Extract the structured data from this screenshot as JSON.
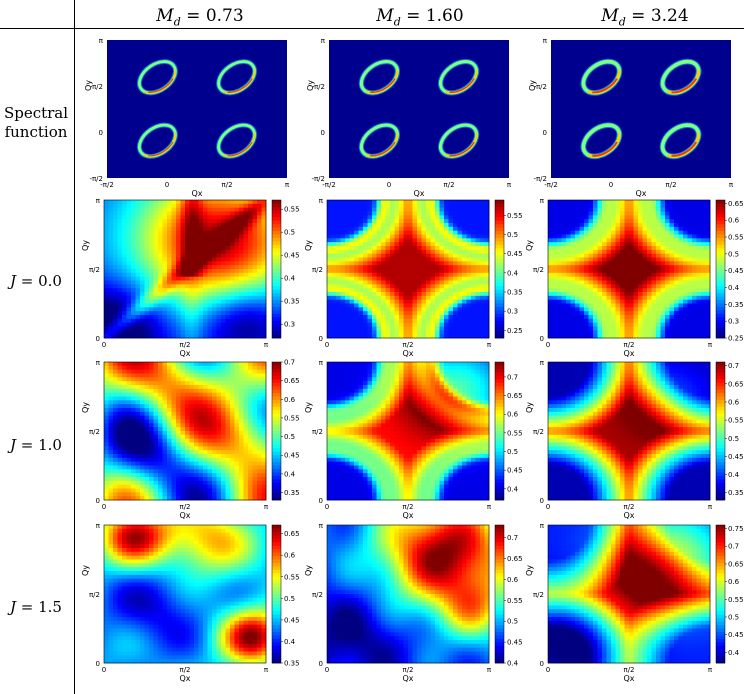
{
  "columns": [
    {
      "label": "M_d = 0.73",
      "sym": "M",
      "sub": "d",
      "value": "0.73"
    },
    {
      "label": "M_d = 1.60",
      "sym": "M",
      "sub": "d",
      "value": "1.60"
    },
    {
      "label": "M_d = 3.24",
      "sym": "M",
      "sub": "d",
      "value": "3.24"
    }
  ],
  "rows": [
    {
      "label_lines": [
        "Spectral",
        "function"
      ]
    },
    {
      "sym": "J",
      "value": "0.0"
    },
    {
      "sym": "J",
      "value": "1.0"
    },
    {
      "sym": "J",
      "value": "1.5"
    }
  ],
  "colors": {
    "jet": [
      "#00008f",
      "#0000ff",
      "#0080ff",
      "#00ffff",
      "#80ff80",
      "#ffff00",
      "#ff8000",
      "#ff0000",
      "#800000"
    ]
  },
  "chart_data": [
    {
      "type": "heatmap",
      "row": 0,
      "col": 0,
      "xlabel": "Q_x",
      "ylabel": "Q_y",
      "xticks": [
        "-π/2",
        "0",
        "π/2",
        "π"
      ],
      "yticks": [
        "π",
        "π/2",
        "0",
        "-π/2"
      ],
      "colorbar": false,
      "pattern": "spectral",
      "param": 0.73
    },
    {
      "type": "heatmap",
      "row": 0,
      "col": 1,
      "xlabel": "Q_x",
      "ylabel": "Q_y",
      "xticks": [
        "-π/2",
        "0",
        "π/2",
        "π"
      ],
      "yticks": [
        "π",
        "π/2",
        "0",
        "-π/2"
      ],
      "colorbar": false,
      "pattern": "spectral",
      "param": 1.6
    },
    {
      "type": "heatmap",
      "row": 0,
      "col": 2,
      "xlabel": "Q_x",
      "ylabel": "Q_y",
      "xticks": [
        "-π/2",
        "0",
        "π/2",
        "π"
      ],
      "yticks": [
        "π",
        "π/2",
        "0",
        "-π/2"
      ],
      "colorbar": false,
      "pattern": "spectral",
      "param": 3.24
    },
    {
      "type": "heatmap",
      "row": 1,
      "col": 0,
      "xlabel": "Q_x",
      "ylabel": "Q_y",
      "xticks": [
        "0",
        "π/2",
        "π"
      ],
      "yticks": [
        "π",
        "π/2",
        "0"
      ],
      "cbar_ticks": [
        0.55,
        0.5,
        0.45,
        0.4,
        0.35,
        0.3
      ],
      "cbar_range": [
        0.27,
        0.57
      ],
      "pattern": "A"
    },
    {
      "type": "heatmap",
      "row": 1,
      "col": 1,
      "xlabel": "Q_x",
      "ylabel": "Q_y",
      "xticks": [
        "0",
        "π/2",
        "π"
      ],
      "yticks": [
        "π",
        "π/2",
        "0"
      ],
      "cbar_ticks": [
        0.55,
        0.5,
        0.45,
        0.4,
        0.35,
        0.3,
        0.25
      ],
      "cbar_range": [
        0.23,
        0.59
      ],
      "pattern": "B"
    },
    {
      "type": "heatmap",
      "row": 1,
      "col": 2,
      "xlabel": "Q_x",
      "ylabel": "Q_y",
      "xticks": [
        "0",
        "π/2",
        "π"
      ],
      "yticks": [
        "π",
        "π/2",
        "0"
      ],
      "cbar_ticks": [
        0.65,
        0.6,
        0.55,
        0.5,
        0.45,
        0.4,
        0.35,
        0.3,
        0.25
      ],
      "cbar_range": [
        0.25,
        0.66
      ],
      "pattern": "C"
    },
    {
      "type": "heatmap",
      "row": 2,
      "col": 0,
      "xlabel": "Q_x",
      "ylabel": "Q_y",
      "xticks": [
        "0",
        "π/2",
        "π"
      ],
      "yticks": [
        "π",
        "π/2",
        "0"
      ],
      "cbar_ticks": [
        0.7,
        0.65,
        0.6,
        0.55,
        0.5,
        0.45,
        0.4,
        0.35
      ],
      "cbar_range": [
        0.33,
        0.7
      ],
      "pattern": "D"
    },
    {
      "type": "heatmap",
      "row": 2,
      "col": 1,
      "xlabel": "Q_x",
      "ylabel": "Q_y",
      "xticks": [
        "0",
        "π/2",
        "π"
      ],
      "yticks": [
        "π",
        "π/2",
        "0"
      ],
      "cbar_ticks": [
        0.7,
        0.65,
        0.6,
        0.55,
        0.5,
        0.45,
        0.4
      ],
      "cbar_range": [
        0.37,
        0.74
      ],
      "pattern": "E"
    },
    {
      "type": "heatmap",
      "row": 2,
      "col": 2,
      "xlabel": "Q_x",
      "ylabel": "Q_y",
      "xticks": [
        "0",
        "π/2",
        "π"
      ],
      "yticks": [
        "π",
        "π/2",
        "0"
      ],
      "cbar_ticks": [
        0.7,
        0.65,
        0.6,
        0.55,
        0.5,
        0.45,
        0.4,
        0.35
      ],
      "cbar_range": [
        0.33,
        0.71
      ],
      "pattern": "F"
    },
    {
      "type": "heatmap",
      "row": 3,
      "col": 0,
      "xlabel": "Q_x",
      "ylabel": "Q_y",
      "xticks": [
        "0",
        "π/2",
        "π"
      ],
      "yticks": [
        "π",
        "π/2",
        "0"
      ],
      "cbar_ticks": [
        0.65,
        0.6,
        0.55,
        0.5,
        0.45,
        0.4,
        0.35
      ],
      "cbar_range": [
        0.35,
        0.67
      ],
      "pattern": "G"
    },
    {
      "type": "heatmap",
      "row": 3,
      "col": 1,
      "xlabel": "Q_x",
      "ylabel": "Q_y",
      "xticks": [
        "0",
        "π/2",
        "π"
      ],
      "yticks": [
        "π",
        "π/2",
        "0"
      ],
      "cbar_ticks": [
        0.7,
        0.65,
        0.6,
        0.55,
        0.5,
        0.45,
        0.4
      ],
      "cbar_range": [
        0.4,
        0.73
      ],
      "pattern": "H"
    },
    {
      "type": "heatmap",
      "row": 3,
      "col": 2,
      "xlabel": "Q_x",
      "ylabel": "Q_y",
      "xticks": [
        "0",
        "π/2",
        "π"
      ],
      "yticks": [
        "π",
        "π/2",
        "0"
      ],
      "cbar_ticks": [
        0.75,
        0.7,
        0.65,
        0.6,
        0.55,
        0.5,
        0.45,
        0.4
      ],
      "cbar_range": [
        0.37,
        0.76
      ],
      "pattern": "I"
    }
  ]
}
